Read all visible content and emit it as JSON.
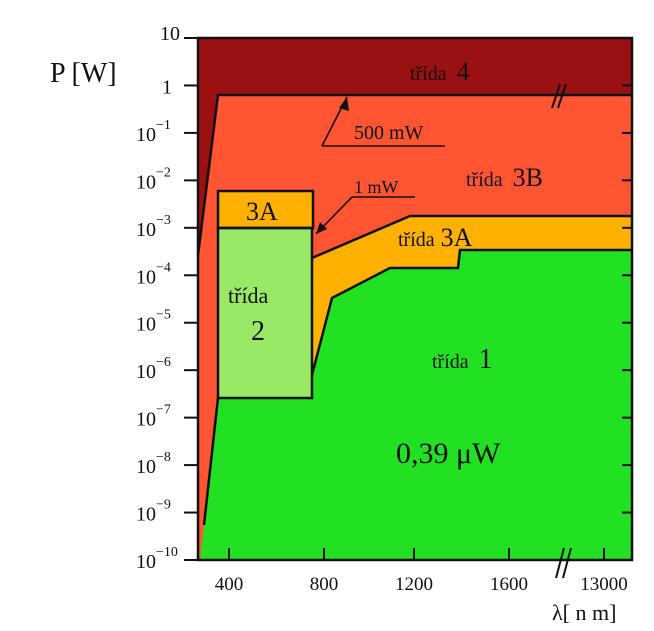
{
  "chart_data": {
    "type": "area",
    "title": "",
    "ylabel": "P [W]",
    "xlabel": "λ[ n m]",
    "y_scale": "log",
    "y_ticks": [
      {
        "value": 10,
        "label": "10",
        "exp": ""
      },
      {
        "value": 1,
        "label": "1",
        "exp": ""
      },
      {
        "value": 0.1,
        "label": "10",
        "exp": "−1"
      },
      {
        "value": 0.01,
        "label": "10",
        "exp": "−2"
      },
      {
        "value": 0.001,
        "label": "10",
        "exp": "−3"
      },
      {
        "value": 0.0001,
        "label": "10",
        "exp": "−4"
      },
      {
        "value": 1e-05,
        "label": "10",
        "exp": "−5"
      },
      {
        "value": 1e-06,
        "label": "10",
        "exp": "−6"
      },
      {
        "value": 1e-07,
        "label": "10",
        "exp": "−7"
      },
      {
        "value": 1e-08,
        "label": "10",
        "exp": "−8"
      },
      {
        "value": 1e-09,
        "label": "10",
        "exp": "−9"
      },
      {
        "value": 1e-10,
        "label": "10",
        "exp": "−10"
      }
    ],
    "x_ticks": [
      "400",
      "800",
      "1200",
      "1600",
      "13000"
    ],
    "regions": [
      {
        "name": "třída 4",
        "color": "#9b1010",
        "prefix": "třída",
        "suffix": "4"
      },
      {
        "name": "třída 3B",
        "color": "#ff5533",
        "prefix": "třída",
        "suffix": "3B"
      },
      {
        "name": "třída 3A",
        "color": "#ffb000",
        "prefix": "třída",
        "suffix": "3A"
      },
      {
        "name": "3A",
        "color": "#ffb000",
        "prefix": "",
        "suffix": "3A"
      },
      {
        "name": "třída 2",
        "color": "#99e866",
        "prefix": "třída",
        "suffix": "2"
      },
      {
        "name": "třída 1",
        "color": "#22e022",
        "prefix": "třída",
        "suffix": "1"
      }
    ],
    "annotations": [
      {
        "text": "500 mW"
      },
      {
        "text": "1 mW"
      },
      {
        "text": "0,39 μW"
      }
    ]
  }
}
